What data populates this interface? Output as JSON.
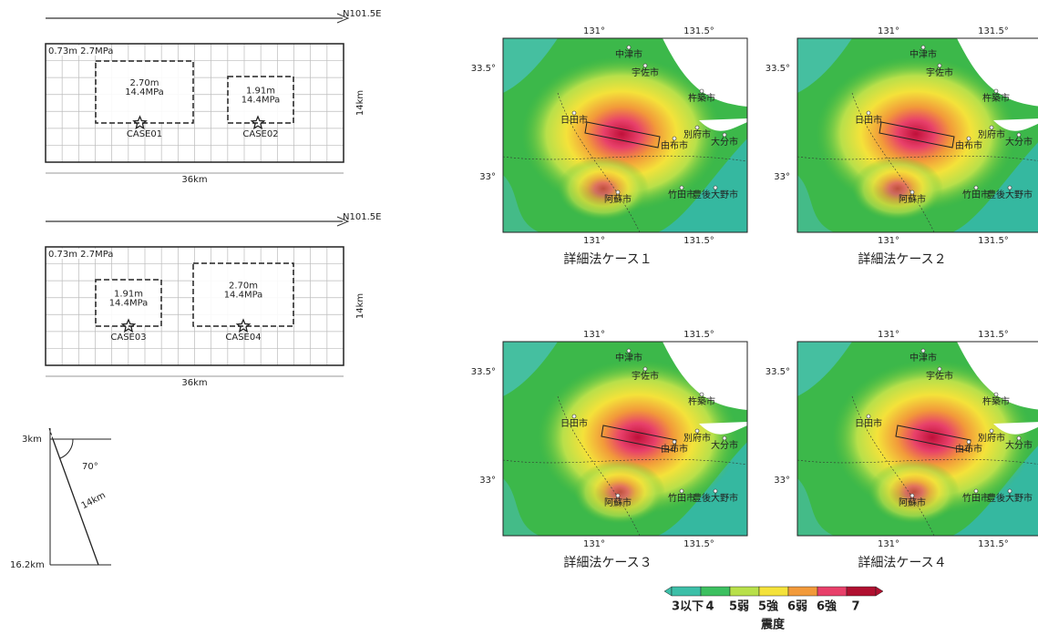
{
  "fault_models": [
    {
      "direction": "N101.5E",
      "background": "0.73m 2.7MPa",
      "width": "14km",
      "length": "36km",
      "asperities": [
        {
          "slip": "2.70m",
          "stress": "14.4MPa",
          "case": "CASE01"
        },
        {
          "slip": "1.91m",
          "stress": "14.4MPa",
          "case": "CASE02"
        }
      ]
    },
    {
      "direction": "N101.5E",
      "background": "0.73m 2.7MPa",
      "width": "14km",
      "length": "36km",
      "asperities": [
        {
          "slip": "1.91m",
          "stress": "14.4MPa",
          "case": "CASE03"
        },
        {
          "slip": "2.70m",
          "stress": "14.4MPa",
          "case": "CASE04"
        }
      ]
    }
  ],
  "cross_section": {
    "top_depth": "3km",
    "bottom_depth": "16.2km",
    "dip": "70°",
    "width": "14km"
  },
  "map_axes": {
    "lon_ticks": [
      "131°",
      "131.5°"
    ],
    "lat_ticks": [
      "33.5°",
      "33°"
    ]
  },
  "cities": [
    "中津市",
    "宇佐市",
    "杵築市",
    "日田市",
    "別府市",
    "大分市",
    "由布市",
    "竹田市",
    "豊後大野市",
    "阿蘇市"
  ],
  "maps": [
    {
      "caption": "詳細法ケース１"
    },
    {
      "caption": "詳細法ケース２"
    },
    {
      "caption": "詳細法ケース３"
    },
    {
      "caption": "詳細法ケース４"
    }
  ],
  "colorbar": {
    "labels": [
      "3以下",
      "4",
      "5弱",
      "5強",
      "6弱",
      "6強",
      "7"
    ],
    "title": "震度"
  }
}
